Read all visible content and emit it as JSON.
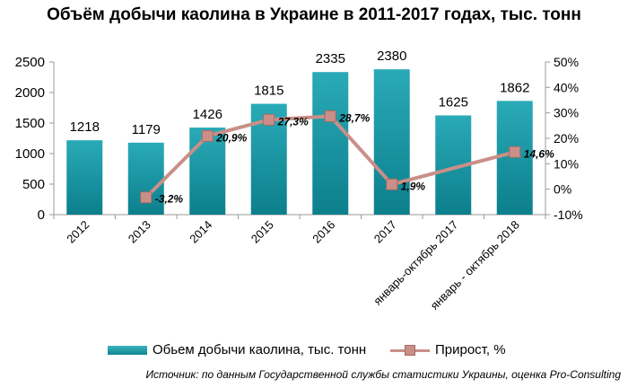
{
  "chart_data": {
    "type": "bar",
    "title": "Объём добычи каолина в Украине в 2011-2017 годах, тыс. тонн",
    "categories": [
      "2012",
      "2013",
      "2014",
      "2015",
      "2016",
      "2017",
      "январь-октябрь 2017",
      "январь - октябрь 2018"
    ],
    "series": [
      {
        "name": "Обьем добычи каолина, тыс. тонн",
        "type": "bar",
        "axis": "left",
        "color": "#15939f",
        "values": [
          1218,
          1179,
          1426,
          1815,
          2335,
          2380,
          1625,
          1862
        ]
      },
      {
        "name": "Прирост, %",
        "type": "line",
        "axis": "right",
        "color": "#c98f88",
        "values": [
          null,
          -3.2,
          20.9,
          27.3,
          28.7,
          1.9,
          null,
          14.6
        ],
        "labels": [
          "",
          "-3,2%",
          "20,9%",
          "27,3%",
          "28,7%",
          "1,9%",
          "",
          "14,6%"
        ]
      }
    ],
    "y_left": {
      "ylim": [
        0,
        2500
      ],
      "ticks": [
        0,
        500,
        1000,
        1500,
        2000,
        2500
      ],
      "tick_labels": [
        "0",
        "500",
        "1000",
        "1500",
        "2000",
        "2500"
      ]
    },
    "y_right": {
      "ylim": [
        -10,
        50
      ],
      "ticks": [
        -10,
        0,
        10,
        20,
        30,
        40,
        50
      ],
      "tick_labels": [
        "-10%",
        "0%",
        "10%",
        "20%",
        "30%",
        "40%",
        "50%"
      ]
    },
    "grid": false,
    "legend": "bottom"
  },
  "source": "Источник: по данным Государственной службы статистики Украины, оценка Pro-Consulting"
}
